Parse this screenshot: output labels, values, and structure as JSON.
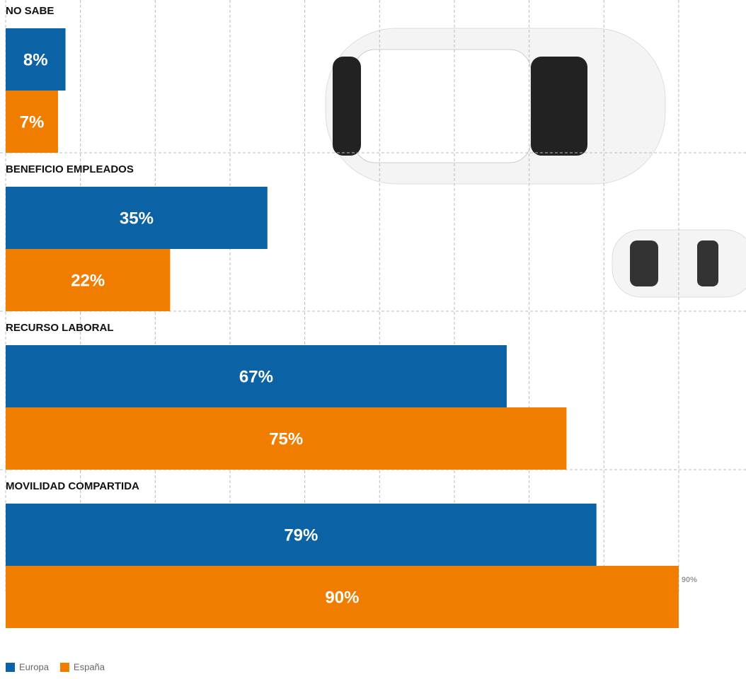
{
  "chart_data": {
    "type": "hbar",
    "categories": [
      "NO SABE",
      "BENEFICIO EMPLEADOS",
      "RECURSO LABORAL",
      "MOVILIDAD COMPARTIDA"
    ],
    "series": [
      {
        "name": "Europa",
        "color": "#0b63a5",
        "values": [
          8,
          35,
          67,
          79
        ],
        "value_labels": [
          "8%",
          "35%",
          "67%",
          "79%"
        ]
      },
      {
        "name": "España",
        "color": "#f07d00",
        "values": [
          7,
          22,
          75,
          90
        ],
        "value_labels": [
          "7%",
          "22%",
          "75%",
          "90%"
        ]
      }
    ],
    "xlim": [
      0,
      99
    ],
    "xticks": [
      {
        "value": 0,
        "label": "0%"
      },
      {
        "value": 10,
        "label": "10%"
      },
      {
        "value": 20,
        "label": "20%"
      },
      {
        "value": 30,
        "label": "30%"
      },
      {
        "value": 40,
        "label": "40%"
      },
      {
        "value": 50,
        "label": "50%"
      },
      {
        "value": 60,
        "label": "60%"
      },
      {
        "value": 70,
        "label": "70%"
      },
      {
        "value": 80,
        "label": "80%"
      },
      {
        "value": 90,
        "label": "90%"
      }
    ],
    "grid": true,
    "legend": "bottom-left"
  }
}
